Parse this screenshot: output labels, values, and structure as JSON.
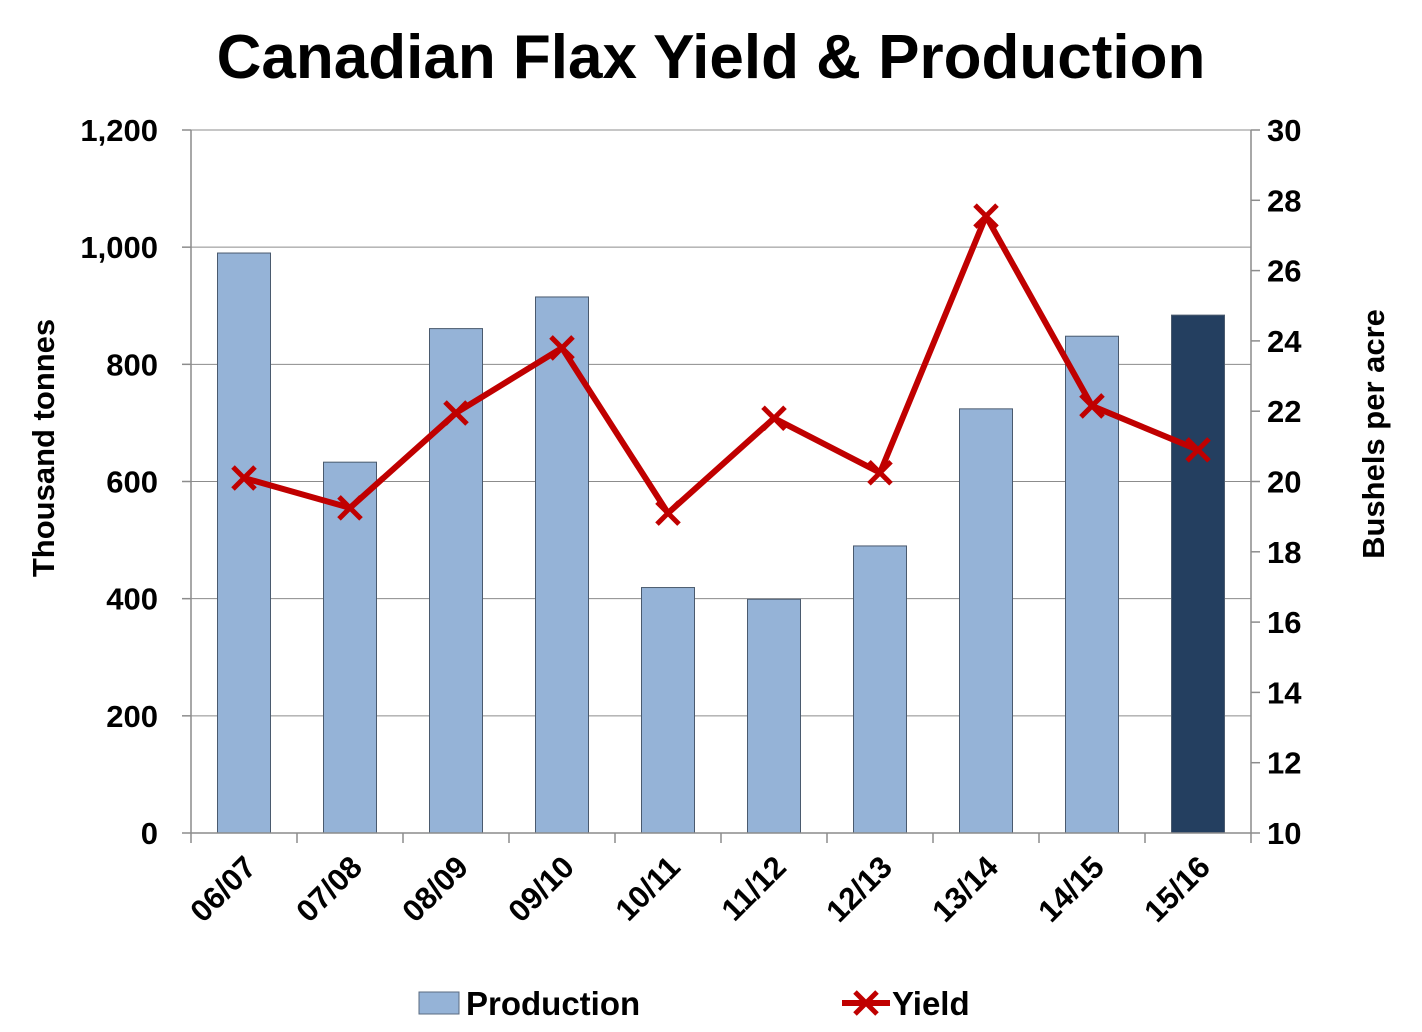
{
  "chart_data": {
    "type": "bar",
    "title": "Canadian Flax Yield & Production",
    "categories": [
      "06/07",
      "07/08",
      "08/09",
      "09/10",
      "10/11",
      "11/12",
      "12/13",
      "13/14",
      "14/15",
      "15/16"
    ],
    "series": [
      {
        "name": "Production",
        "type": "bar",
        "axis": "left",
        "values": [
          990,
          633,
          861,
          915,
          419,
          399,
          490,
          724,
          848,
          884
        ],
        "color": "#95b3d7",
        "highlight_color": "#243f60",
        "highlight_index": 9
      },
      {
        "name": "Yield",
        "type": "line",
        "axis": "right",
        "values": [
          20.1,
          19.25,
          21.95,
          23.8,
          19.1,
          21.8,
          20.25,
          27.55,
          22.15,
          20.9
        ],
        "color": "#c00000",
        "marker": "x"
      }
    ],
    "y_left": {
      "label": "Thousand tonnes",
      "min": 0,
      "max": 1200,
      "step": 200,
      "ticks": [
        "0",
        "200",
        "400",
        "600",
        "800",
        "1,000",
        "1,200"
      ]
    },
    "y_right": {
      "label": "Bushels per acre",
      "min": 10,
      "max": 30,
      "step": 2,
      "ticks": [
        "10",
        "12",
        "14",
        "16",
        "18",
        "20",
        "22",
        "24",
        "26",
        "28",
        "30"
      ]
    },
    "grid": true,
    "legend": "bottom"
  }
}
